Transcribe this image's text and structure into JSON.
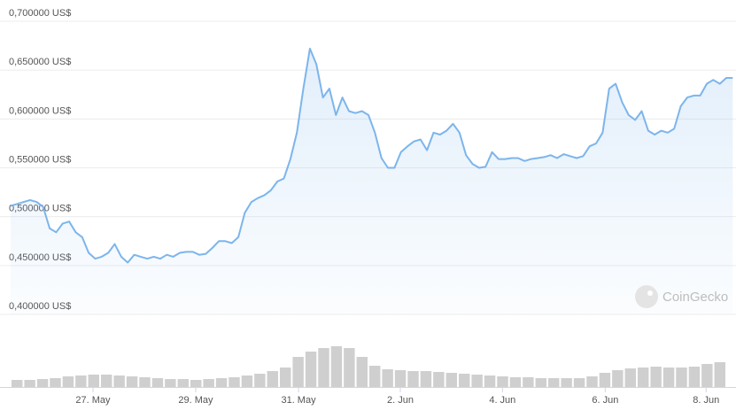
{
  "chart_data": {
    "type": "line",
    "watermark": "CoinGecko",
    "color": "#7cb5ec",
    "grid": true,
    "xlim": [
      0,
      110
    ],
    "xticks": [
      {
        "value": 12.66,
        "label": "27. May"
      },
      {
        "value": 28.45,
        "label": "29. May"
      },
      {
        "value": 44.25,
        "label": "31. May"
      },
      {
        "value": 59.9,
        "label": "2. Jun"
      },
      {
        "value": 75.6,
        "label": "4. Jun"
      },
      {
        "value": 91.4,
        "label": "6. Jun"
      },
      {
        "value": 106.9,
        "label": "8. Jun"
      }
    ],
    "ylim": [
      0.4,
      0.7
    ],
    "yticks": [
      {
        "value": 0.4,
        "label": "0,400000 US$"
      },
      {
        "value": 0.45,
        "label": "0,450000 US$"
      },
      {
        "value": 0.5,
        "label": "0,500000 US$"
      },
      {
        "value": 0.55,
        "label": "0,550000 US$"
      },
      {
        "value": 0.6,
        "label": "0,600000 US$"
      },
      {
        "value": 0.65,
        "label": "0,650000 US$"
      },
      {
        "value": 0.7,
        "label": "0,700000 US$"
      }
    ],
    "values": [
      0.511,
      0.513,
      0.515,
      0.517,
      0.515,
      0.51,
      0.488,
      0.484,
      0.493,
      0.495,
      0.484,
      0.479,
      0.463,
      0.457,
      0.459,
      0.463,
      0.472,
      0.459,
      0.453,
      0.461,
      0.459,
      0.457,
      0.459,
      0.457,
      0.461,
      0.459,
      0.463,
      0.464,
      0.464,
      0.461,
      0.462,
      0.468,
      0.475,
      0.475,
      0.473,
      0.479,
      0.504,
      0.515,
      0.519,
      0.522,
      0.527,
      0.536,
      0.539,
      0.559,
      0.586,
      0.631,
      0.672,
      0.656,
      0.622,
      0.631,
      0.604,
      0.622,
      0.608,
      0.606,
      0.608,
      0.604,
      0.586,
      0.56,
      0.55,
      0.55,
      0.566,
      0.572,
      0.577,
      0.579,
      0.568,
      0.586,
      0.584,
      0.588,
      0.595,
      0.586,
      0.563,
      0.554,
      0.55,
      0.551,
      0.566,
      0.559,
      0.559,
      0.56,
      0.56,
      0.557,
      0.559,
      0.56,
      0.561,
      0.563,
      0.56,
      0.564,
      0.562,
      0.56,
      0.562,
      0.572,
      0.575,
      0.586,
      0.631,
      0.636,
      0.617,
      0.604,
      0.599,
      0.608,
      0.588,
      0.584,
      0.588,
      0.586,
      0.59,
      0.613,
      0.622,
      0.624,
      0.624,
      0.636,
      0.64,
      0.636,
      0.642,
      0.642
    ],
    "volume": {
      "color": "#cfcfcf",
      "ylim": [
        0,
        50
      ],
      "values": [
        8,
        8,
        9,
        10,
        12,
        13,
        14,
        14,
        13,
        12,
        11,
        10,
        9,
        9,
        8,
        9,
        10,
        11,
        13,
        15,
        18,
        22,
        34,
        40,
        44,
        46,
        44,
        34,
        24,
        20,
        19,
        18,
        18,
        17,
        16,
        15,
        14,
        13,
        12,
        11,
        11,
        10,
        10,
        10,
        10,
        12,
        16,
        19,
        21,
        22,
        23,
        22,
        22,
        23,
        26,
        28
      ]
    }
  }
}
